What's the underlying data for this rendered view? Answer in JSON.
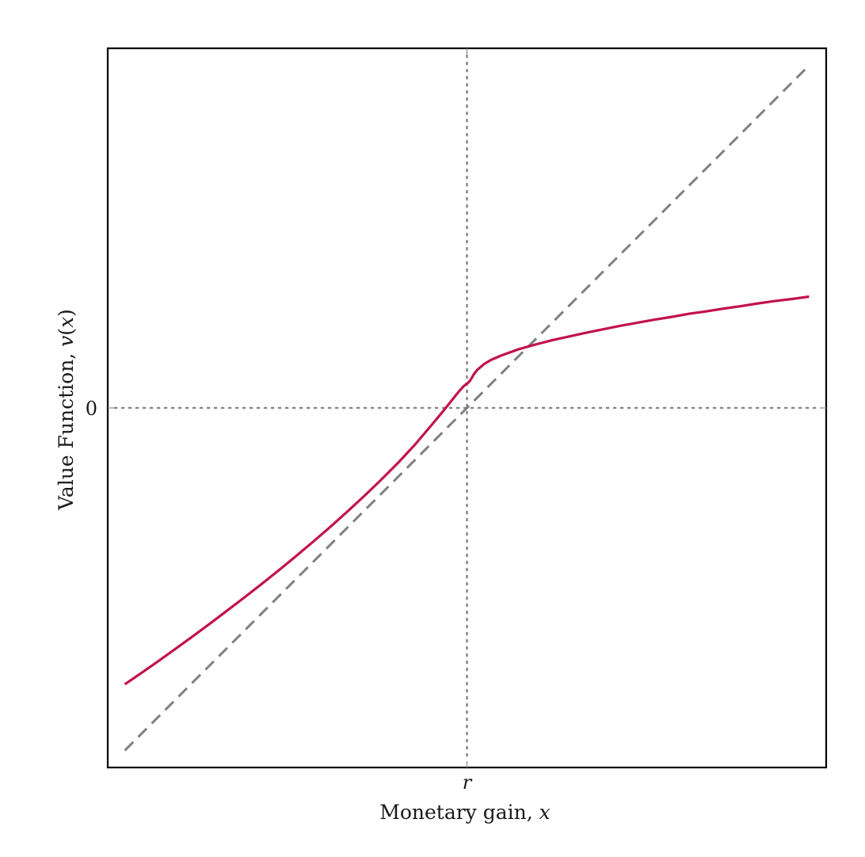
{
  "chart_data": {
    "type": "line",
    "title": "",
    "xlabel": {
      "text": "Monetary gain, ",
      "var": "x"
    },
    "ylabel": {
      "text": "Value Function, ",
      "var": "v",
      "open": "(",
      "arg": "x",
      "close": ")"
    },
    "x_ticks": [
      {
        "value": 0,
        "label": "r"
      }
    ],
    "y_ticks": [
      {
        "value": 0,
        "label": "0"
      }
    ],
    "xlim": [
      -1.05,
      1.05
    ],
    "ylim": [
      -1.05,
      1.05
    ],
    "grid": false,
    "legend": "none",
    "reference_lines": [
      {
        "kind": "vertical",
        "at": 0,
        "style": "dotted",
        "color": "#888888"
      },
      {
        "kind": "horizontal",
        "at": 0,
        "style": "dotted",
        "color": "#888888"
      }
    ],
    "series": [
      {
        "style": "dashed",
        "color": "#808080",
        "x": [
          -1,
          1
        ],
        "y": [
          -1,
          1
        ]
      },
      {
        "style": "solid",
        "color": "#c2124b",
        "x": [
          -1.0,
          -0.95,
          -0.9,
          -0.85,
          -0.8,
          -0.75,
          -0.7,
          -0.65,
          -0.6,
          -0.55,
          -0.5,
          -0.45,
          -0.4,
          -0.35,
          -0.3,
          -0.25,
          -0.2,
          -0.15,
          -0.1,
          -0.07,
          -0.05,
          -0.03,
          -0.02,
          -0.01,
          -0.005,
          -0.002,
          0,
          0.002,
          0.005,
          0.01,
          0.02,
          0.03,
          0.05,
          0.07,
          0.1,
          0.15,
          0.2,
          0.25,
          0.3,
          0.35,
          0.4,
          0.45,
          0.5,
          0.55,
          0.6,
          0.65,
          0.7,
          0.75,
          0.8,
          0.85,
          0.9,
          0.95,
          1.0
        ],
        "y": [
          -0.807,
          -0.773,
          -0.738,
          -0.702,
          -0.666,
          -0.629,
          -0.591,
          -0.553,
          -0.514,
          -0.474,
          -0.433,
          -0.391,
          -0.348,
          -0.303,
          -0.257,
          -0.209,
          -0.159,
          -0.105,
          -0.046,
          -0.01,
          0.015,
          0.04,
          0.052,
          0.063,
          0.067,
          0.07,
          0.071,
          0.072,
          0.075,
          0.081,
          0.098,
          0.111,
          0.128,
          0.14,
          0.153,
          0.171,
          0.185,
          0.198,
          0.209,
          0.22,
          0.23,
          0.24,
          0.249,
          0.258,
          0.266,
          0.275,
          0.282,
          0.29,
          0.297,
          0.305,
          0.312,
          0.318,
          0.325
        ]
      }
    ]
  }
}
